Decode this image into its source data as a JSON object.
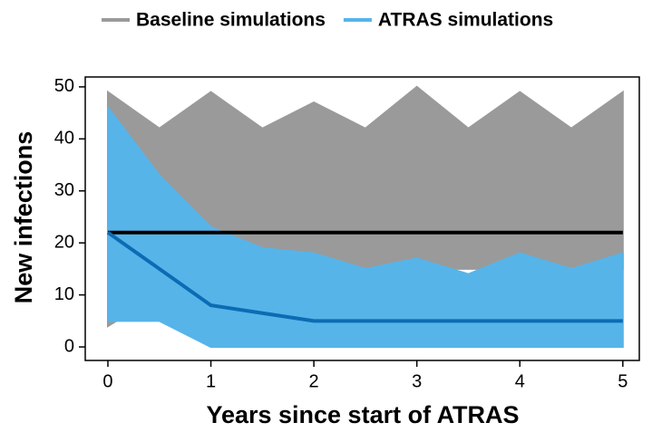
{
  "chart_data": {
    "type": "range-area",
    "x_label": "Years since start of ATRAS",
    "y_label": "New infections",
    "x": [
      0,
      0.5,
      1,
      1.5,
      2,
      2.5,
      3,
      3.5,
      4,
      4.5,
      5
    ],
    "series": [
      {
        "name": "Baseline simulations",
        "color": "#9a9a9a",
        "mean_color": "#000000",
        "upper": [
          49,
          42,
          49,
          42,
          47,
          42,
          50,
          42,
          49,
          42,
          49
        ],
        "lower": [
          4,
          10,
          15,
          15,
          15,
          15,
          15,
          15,
          15,
          15,
          15
        ],
        "mean": [
          22,
          22,
          22,
          22,
          22,
          22,
          22,
          22,
          22,
          22,
          22
        ]
      },
      {
        "name": "ATRAS simulations",
        "color": "#56b4e9",
        "mean_color": "#0b6cb3",
        "upper": [
          46,
          33,
          23,
          19,
          18,
          15,
          17,
          14,
          18,
          15,
          18
        ],
        "lower": [
          5,
          5,
          0,
          0,
          0,
          0,
          0,
          0,
          0,
          0,
          0
        ],
        "mean": [
          22,
          15,
          8,
          6.5,
          5,
          5,
          5,
          5,
          5,
          5,
          5
        ]
      }
    ],
    "xlim": [
      -0.22,
      5.16
    ],
    "ylim": [
      -2.6,
      51.9
    ],
    "xticks": [
      0,
      1,
      2,
      3,
      4,
      5
    ],
    "yticks": [
      0,
      10,
      20,
      30,
      40,
      50
    ]
  }
}
